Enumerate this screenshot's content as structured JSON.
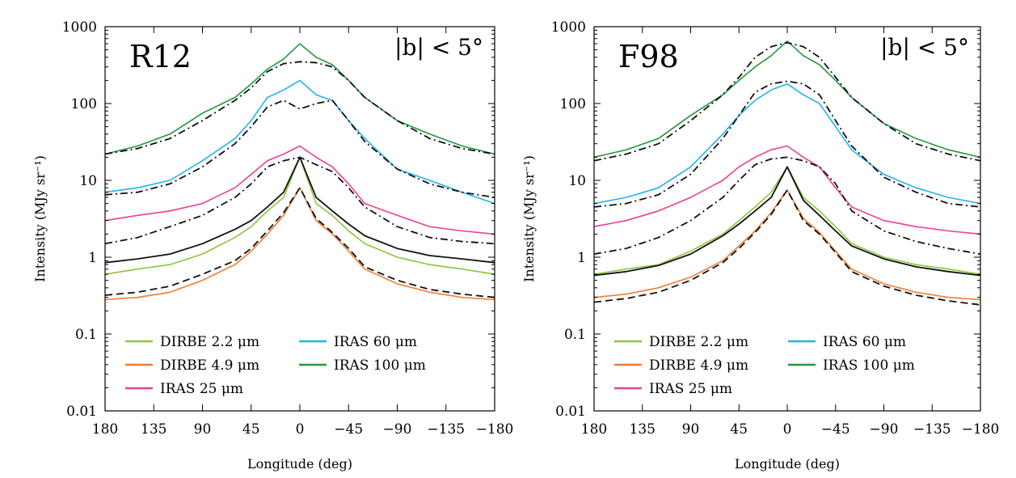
{
  "chart_data": [
    {
      "type": "line",
      "panel_label": "R12",
      "region_label": "|b| < 5°",
      "xlabel": "Longitude (deg)",
      "ylabel": "Intensity (MJy sr⁻¹)",
      "yscale": "log",
      "xlim": [
        180,
        -180
      ],
      "ylim": [
        0.01,
        1000
      ],
      "xticks": [
        180,
        135,
        90,
        45,
        0,
        -45,
        -90,
        -135,
        -180
      ],
      "xtick_labels": [
        "180",
        "135",
        "90",
        "45",
        "0",
        "−45",
        "−90",
        "−135",
        "−180"
      ],
      "yticks": [
        0.01,
        0.1,
        1,
        10,
        100,
        1000
      ],
      "ytick_labels": [
        "0.01",
        "0.1",
        "1",
        "10",
        "100",
        "1000"
      ],
      "legend": [
        {
          "label": "DIRBE 2.2 μm",
          "color": "#8cc63f"
        },
        {
          "label": "IRAS 60 μm",
          "color": "#1fb6e8"
        },
        {
          "label": "DIRBE 4.9 μm",
          "color": "#f47b30"
        },
        {
          "label": "IRAS 100 μm",
          "color": "#1e9a3c"
        },
        {
          "label": "IRAS 25 μm",
          "color": "#ec3f96"
        }
      ],
      "legend_position": "lower-left",
      "x": [
        180,
        150,
        120,
        90,
        60,
        45,
        30,
        15,
        0,
        -15,
        -30,
        -45,
        -60,
        -90,
        -120,
        -150,
        -180
      ],
      "series": [
        {
          "name": "IRAS 100 μm (data)",
          "color": "#1e9a3c",
          "style": "solid",
          "values": [
            22,
            28,
            40,
            75,
            120,
            180,
            280,
            380,
            600,
            400,
            320,
            200,
            120,
            60,
            40,
            28,
            22
          ]
        },
        {
          "name": "IRAS 100 μm (model)",
          "color": "#111111",
          "style": "dashdot",
          "values": [
            22,
            26,
            35,
            60,
            110,
            160,
            260,
            330,
            350,
            340,
            300,
            200,
            120,
            60,
            35,
            26,
            22
          ]
        },
        {
          "name": "IRAS 60 μm (data)",
          "color": "#1fb6e8",
          "style": "solid",
          "values": [
            7,
            8,
            10,
            18,
            35,
            60,
            120,
            150,
            200,
            130,
            110,
            60,
            35,
            14,
            10,
            7,
            5
          ]
        },
        {
          "name": "IRAS 60 μm (model)",
          "color": "#111111",
          "style": "dashdot",
          "values": [
            6.5,
            7,
            9,
            15,
            30,
            50,
            90,
            110,
            85,
            100,
            110,
            60,
            32,
            14,
            9,
            7,
            6
          ]
        },
        {
          "name": "IRAS 25 μm (data)",
          "color": "#ec3f96",
          "style": "solid",
          "values": [
            3,
            3.5,
            4,
            5,
            8,
            12,
            18,
            22,
            28,
            20,
            15,
            9,
            5,
            3.5,
            2.5,
            2.2,
            2
          ]
        },
        {
          "name": "IRAS 25 μm (model)",
          "color": "#111111",
          "style": "dashdot",
          "values": [
            1.5,
            1.8,
            2.5,
            3.5,
            6,
            9,
            15,
            18,
            20,
            16,
            13,
            8,
            4.5,
            2.5,
            1.8,
            1.6,
            1.5
          ]
        },
        {
          "name": "DIRBE 2.2 μm (data)",
          "color": "#8cc63f",
          "style": "solid",
          "values": [
            0.6,
            0.7,
            0.8,
            1.1,
            1.8,
            2.5,
            4,
            6,
            20,
            5,
            3.5,
            2.2,
            1.5,
            1.0,
            0.8,
            0.7,
            0.6
          ]
        },
        {
          "name": "DIRBE 2.2 μm (model)",
          "color": "#111111",
          "style": "solid",
          "values": [
            0.85,
            0.95,
            1.1,
            1.5,
            2.3,
            3.0,
            4.5,
            7,
            20,
            6,
            4,
            2.7,
            1.9,
            1.3,
            1.05,
            0.95,
            0.85
          ]
        },
        {
          "name": "DIRBE 4.9 μm (data)",
          "color": "#f47b30",
          "style": "solid",
          "values": [
            0.28,
            0.3,
            0.35,
            0.5,
            0.8,
            1.2,
            2.0,
            3.5,
            8,
            3,
            2,
            1.2,
            0.7,
            0.45,
            0.35,
            0.3,
            0.28
          ]
        },
        {
          "name": "DIRBE 4.9 μm (model)",
          "color": "#111111",
          "style": "dashed",
          "values": [
            0.32,
            0.35,
            0.42,
            0.6,
            0.9,
            1.3,
            2.2,
            3.8,
            8,
            3.2,
            2.1,
            1.3,
            0.75,
            0.5,
            0.38,
            0.33,
            0.3
          ]
        }
      ]
    },
    {
      "type": "line",
      "panel_label": "F98",
      "region_label": "|b| < 5°",
      "xlabel": "Longitude (deg)",
      "ylabel": "Intensity (MJy sr⁻¹)",
      "yscale": "log",
      "xlim": [
        180,
        -180
      ],
      "ylim": [
        0.01,
        1000
      ],
      "xticks": [
        180,
        135,
        90,
        45,
        0,
        -45,
        -90,
        -135,
        -180
      ],
      "xtick_labels": [
        "180",
        "135",
        "90",
        "45",
        "0",
        "−45",
        "−90",
        "−135",
        "−180"
      ],
      "yticks": [
        0.01,
        0.1,
        1,
        10,
        100,
        1000
      ],
      "ytick_labels": [
        "0.01",
        "0.1",
        "1",
        "10",
        "100",
        "1000"
      ],
      "legend": [
        {
          "label": "DIRBE 2.2 μm",
          "color": "#8cc63f"
        },
        {
          "label": "IRAS 60 μm",
          "color": "#1fb6e8"
        },
        {
          "label": "DIRBE 4.9 μm",
          "color": "#f47b30"
        },
        {
          "label": "IRAS 100 μm",
          "color": "#1e9a3c"
        },
        {
          "label": "IRAS 25 μm",
          "color": "#ec3f96"
        }
      ],
      "legend_position": "lower-left",
      "x": [
        180,
        150,
        120,
        90,
        60,
        45,
        30,
        15,
        0,
        -15,
        -30,
        -45,
        -60,
        -90,
        -120,
        -150,
        -180
      ],
      "series": [
        {
          "name": "IRAS 100 μm (data)",
          "color": "#1e9a3c",
          "style": "solid",
          "values": [
            20,
            25,
            35,
            70,
            130,
            200,
            300,
            420,
            650,
            420,
            320,
            200,
            120,
            55,
            35,
            25,
            20
          ]
        },
        {
          "name": "IRAS 100 μm (model)",
          "color": "#111111",
          "style": "dashdot",
          "values": [
            18,
            22,
            30,
            60,
            130,
            220,
            400,
            550,
            620,
            550,
            400,
            220,
            120,
            55,
            30,
            22,
            18
          ]
        },
        {
          "name": "IRAS 60 μm (data)",
          "color": "#1fb6e8",
          "style": "solid",
          "values": [
            5,
            6,
            8,
            15,
            40,
            70,
            110,
            150,
            180,
            130,
            100,
            50,
            25,
            12,
            8,
            6,
            5
          ]
        },
        {
          "name": "IRAS 60 μm (model)",
          "color": "#111111",
          "style": "dashdot",
          "values": [
            4.5,
            5,
            6.5,
            12,
            35,
            70,
            140,
            180,
            195,
            180,
            130,
            60,
            28,
            11,
            7,
            5,
            4.5
          ]
        },
        {
          "name": "IRAS 25 μm (data)",
          "color": "#ec3f96",
          "style": "solid",
          "values": [
            2.5,
            3,
            4,
            6,
            10,
            15,
            20,
            25,
            28,
            20,
            15,
            8,
            4.5,
            3,
            2.5,
            2.2,
            2
          ]
        },
        {
          "name": "IRAS 25 μm (model)",
          "color": "#111111",
          "style": "dashdot",
          "values": [
            1.1,
            1.3,
            1.8,
            3,
            6,
            10,
            16,
            19,
            20,
            18,
            15,
            9,
            4,
            2.2,
            1.6,
            1.3,
            1.1
          ]
        },
        {
          "name": "DIRBE 2.2 μm (data)",
          "color": "#8cc63f",
          "style": "solid",
          "values": [
            0.6,
            0.7,
            0.8,
            1.2,
            2.0,
            3.0,
            4.5,
            7,
            15,
            6,
            4,
            2.5,
            1.5,
            1.0,
            0.8,
            0.7,
            0.6
          ]
        },
        {
          "name": "DIRBE 2.2 μm (model)",
          "color": "#111111",
          "style": "solid",
          "values": [
            0.58,
            0.65,
            0.78,
            1.1,
            1.9,
            2.7,
            4.0,
            6,
            15,
            5.5,
            3.5,
            2.2,
            1.4,
            0.95,
            0.75,
            0.65,
            0.58
          ]
        },
        {
          "name": "DIRBE 4.9 μm (data)",
          "color": "#f47b30",
          "style": "solid",
          "values": [
            0.3,
            0.33,
            0.4,
            0.55,
            0.9,
            1.4,
            2.2,
            3.8,
            7.5,
            3.2,
            2.1,
            1.2,
            0.7,
            0.45,
            0.35,
            0.3,
            0.28
          ]
        },
        {
          "name": "DIRBE 4.9 μm (model)",
          "color": "#111111",
          "style": "dashed",
          "values": [
            0.26,
            0.29,
            0.35,
            0.5,
            0.85,
            1.3,
            2.1,
            3.6,
            7.5,
            3.0,
            2.0,
            1.15,
            0.65,
            0.42,
            0.32,
            0.27,
            0.24
          ]
        }
      ]
    }
  ]
}
